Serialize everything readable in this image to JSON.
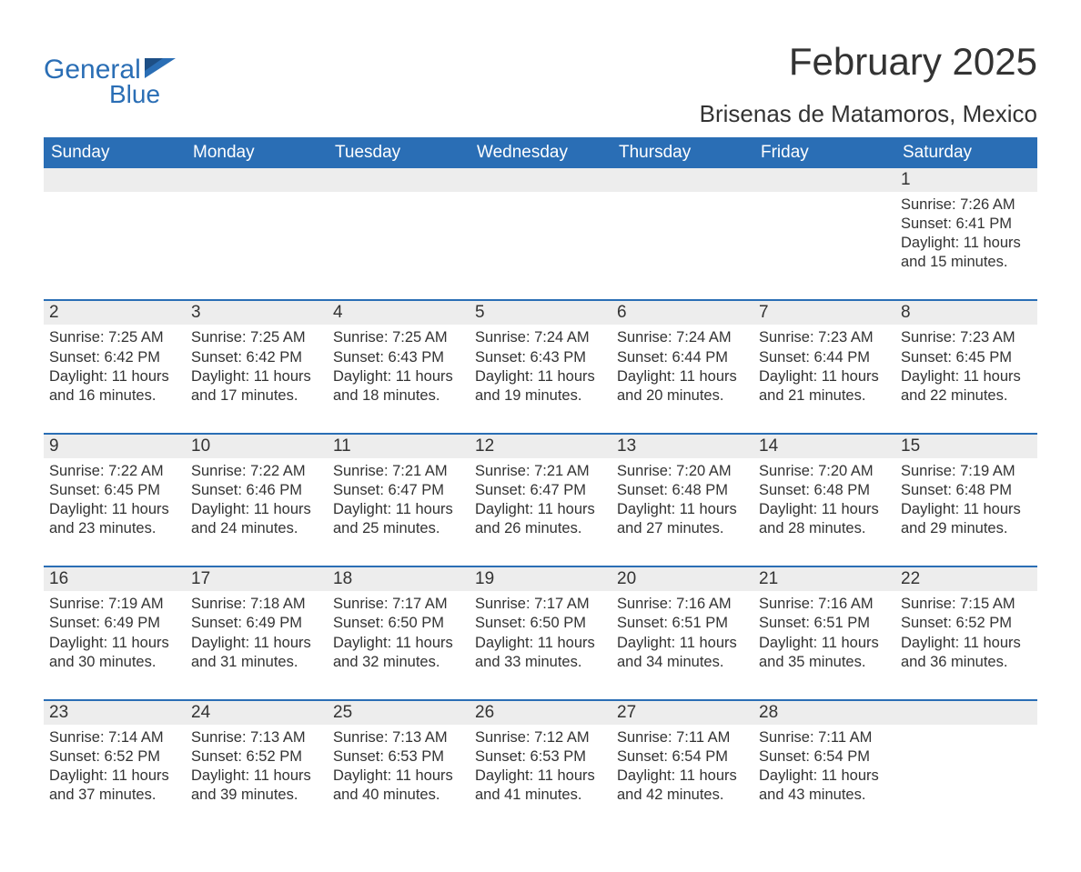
{
  "brand": {
    "word1": "General",
    "word2": "Blue",
    "color": "#2a6eb5"
  },
  "title": "February 2025",
  "location": "Brisenas de Matamoros, Mexico",
  "colors": {
    "header_bg": "#2a6eb5",
    "header_text": "#ffffff",
    "daynum_bg": "#ededed",
    "row_divider": "#2a6eb5",
    "body_text": "#333333",
    "page_bg": "#ffffff"
  },
  "dow": [
    "Sunday",
    "Monday",
    "Tuesday",
    "Wednesday",
    "Thursday",
    "Friday",
    "Saturday"
  ],
  "weeks": [
    [
      null,
      null,
      null,
      null,
      null,
      null,
      {
        "n": 1,
        "sunrise": "7:26 AM",
        "sunset": "6:41 PM",
        "dl_h": 11,
        "dl_m": 15
      }
    ],
    [
      {
        "n": 2,
        "sunrise": "7:25 AM",
        "sunset": "6:42 PM",
        "dl_h": 11,
        "dl_m": 16
      },
      {
        "n": 3,
        "sunrise": "7:25 AM",
        "sunset": "6:42 PM",
        "dl_h": 11,
        "dl_m": 17
      },
      {
        "n": 4,
        "sunrise": "7:25 AM",
        "sunset": "6:43 PM",
        "dl_h": 11,
        "dl_m": 18
      },
      {
        "n": 5,
        "sunrise": "7:24 AM",
        "sunset": "6:43 PM",
        "dl_h": 11,
        "dl_m": 19
      },
      {
        "n": 6,
        "sunrise": "7:24 AM",
        "sunset": "6:44 PM",
        "dl_h": 11,
        "dl_m": 20
      },
      {
        "n": 7,
        "sunrise": "7:23 AM",
        "sunset": "6:44 PM",
        "dl_h": 11,
        "dl_m": 21
      },
      {
        "n": 8,
        "sunrise": "7:23 AM",
        "sunset": "6:45 PM",
        "dl_h": 11,
        "dl_m": 22
      }
    ],
    [
      {
        "n": 9,
        "sunrise": "7:22 AM",
        "sunset": "6:45 PM",
        "dl_h": 11,
        "dl_m": 23
      },
      {
        "n": 10,
        "sunrise": "7:22 AM",
        "sunset": "6:46 PM",
        "dl_h": 11,
        "dl_m": 24
      },
      {
        "n": 11,
        "sunrise": "7:21 AM",
        "sunset": "6:47 PM",
        "dl_h": 11,
        "dl_m": 25
      },
      {
        "n": 12,
        "sunrise": "7:21 AM",
        "sunset": "6:47 PM",
        "dl_h": 11,
        "dl_m": 26
      },
      {
        "n": 13,
        "sunrise": "7:20 AM",
        "sunset": "6:48 PM",
        "dl_h": 11,
        "dl_m": 27
      },
      {
        "n": 14,
        "sunrise": "7:20 AM",
        "sunset": "6:48 PM",
        "dl_h": 11,
        "dl_m": 28
      },
      {
        "n": 15,
        "sunrise": "7:19 AM",
        "sunset": "6:48 PM",
        "dl_h": 11,
        "dl_m": 29
      }
    ],
    [
      {
        "n": 16,
        "sunrise": "7:19 AM",
        "sunset": "6:49 PM",
        "dl_h": 11,
        "dl_m": 30
      },
      {
        "n": 17,
        "sunrise": "7:18 AM",
        "sunset": "6:49 PM",
        "dl_h": 11,
        "dl_m": 31
      },
      {
        "n": 18,
        "sunrise": "7:17 AM",
        "sunset": "6:50 PM",
        "dl_h": 11,
        "dl_m": 32
      },
      {
        "n": 19,
        "sunrise": "7:17 AM",
        "sunset": "6:50 PM",
        "dl_h": 11,
        "dl_m": 33
      },
      {
        "n": 20,
        "sunrise": "7:16 AM",
        "sunset": "6:51 PM",
        "dl_h": 11,
        "dl_m": 34
      },
      {
        "n": 21,
        "sunrise": "7:16 AM",
        "sunset": "6:51 PM",
        "dl_h": 11,
        "dl_m": 35
      },
      {
        "n": 22,
        "sunrise": "7:15 AM",
        "sunset": "6:52 PM",
        "dl_h": 11,
        "dl_m": 36
      }
    ],
    [
      {
        "n": 23,
        "sunrise": "7:14 AM",
        "sunset": "6:52 PM",
        "dl_h": 11,
        "dl_m": 37
      },
      {
        "n": 24,
        "sunrise": "7:13 AM",
        "sunset": "6:52 PM",
        "dl_h": 11,
        "dl_m": 39
      },
      {
        "n": 25,
        "sunrise": "7:13 AM",
        "sunset": "6:53 PM",
        "dl_h": 11,
        "dl_m": 40
      },
      {
        "n": 26,
        "sunrise": "7:12 AM",
        "sunset": "6:53 PM",
        "dl_h": 11,
        "dl_m": 41
      },
      {
        "n": 27,
        "sunrise": "7:11 AM",
        "sunset": "6:54 PM",
        "dl_h": 11,
        "dl_m": 42
      },
      {
        "n": 28,
        "sunrise": "7:11 AM",
        "sunset": "6:54 PM",
        "dl_h": 11,
        "dl_m": 43
      },
      null
    ]
  ],
  "labels": {
    "sunrise": "Sunrise:",
    "sunset": "Sunset:",
    "daylight1": "Daylight:",
    "hours": "hours",
    "and": "and",
    "minutes": "minutes."
  }
}
